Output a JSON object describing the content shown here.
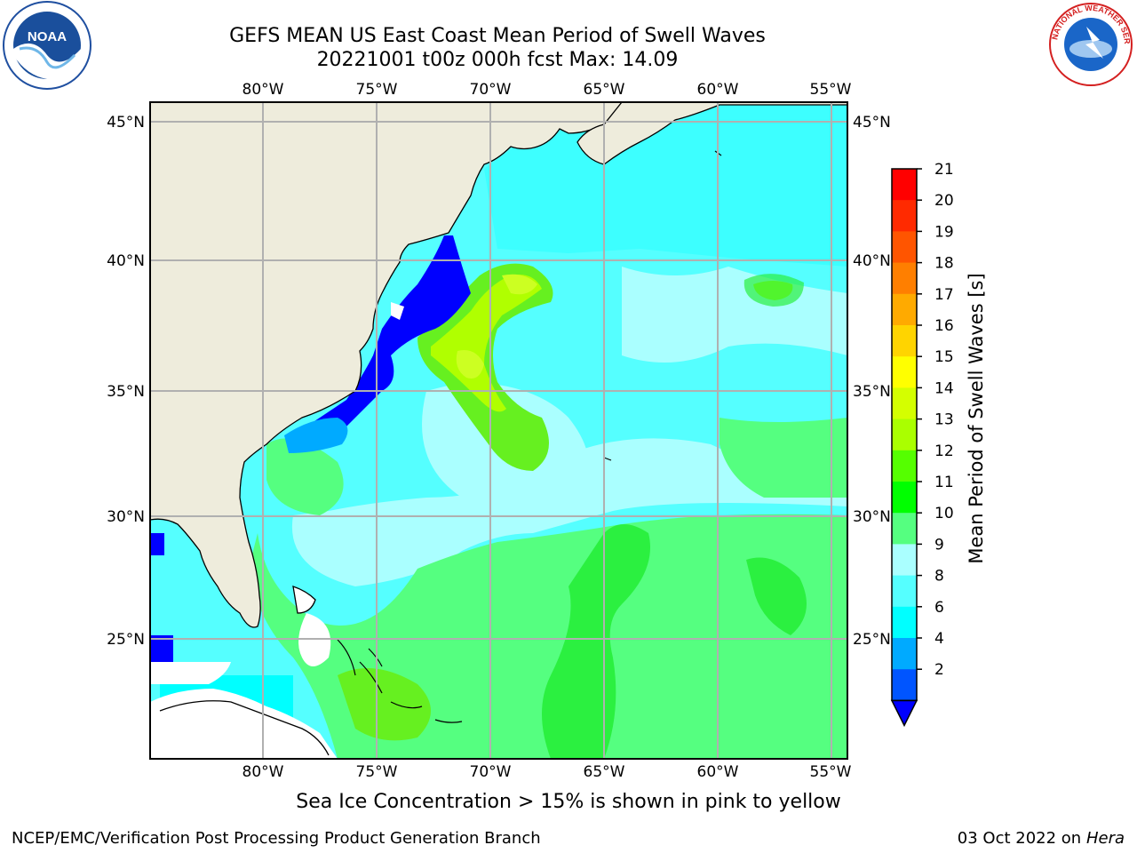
{
  "title_line1": "GEFS MEAN US East Coast Mean Period of Swell Waves",
  "title_line2": "20221001 t00z 000h fcst   Max: 14.09",
  "logos": {
    "left": "NOAA",
    "right": "NATIONAL WEATHER SERVICE"
  },
  "map": {
    "lon_labels": [
      "80°W",
      "75°W",
      "70°W",
      "65°W",
      "60°W",
      "55°W"
    ],
    "lat_labels": [
      "45°N",
      "40°N",
      "35°N",
      "30°N",
      "25°N"
    ],
    "colors": {
      "land": "#eeecdc",
      "coast": "#000000",
      "grid": "#b0b0b0",
      "no_data": "#ffffff"
    }
  },
  "colorbar": {
    "label": "Mean Period of Swell Waves [s]",
    "ticks": [
      "21",
      "20",
      "19",
      "18",
      "17",
      "16",
      "15",
      "14",
      "13",
      "12",
      "11",
      "10",
      "9",
      "8",
      "6",
      "4",
      "2"
    ],
    "colors": [
      "#ff0000",
      "#ff2a00",
      "#ff5500",
      "#ff7f00",
      "#ffaa00",
      "#ffd400",
      "#ffff00",
      "#d4ff00",
      "#aaff00",
      "#55ff00",
      "#00ff00",
      "#55ff80",
      "#aaffff",
      "#55ffff",
      "#00ffff",
      "#00aaff",
      "#0055ff"
    ],
    "extend_color": "#0000ff"
  },
  "caption": "Sea Ice Concentration > 15% is shown in pink to yellow",
  "footer_left": "NCEP/EMC/Verification Post Processing Product Generation Branch",
  "footer_right_text": "03 Oct 2022 on ",
  "footer_right_host": "Hera"
}
